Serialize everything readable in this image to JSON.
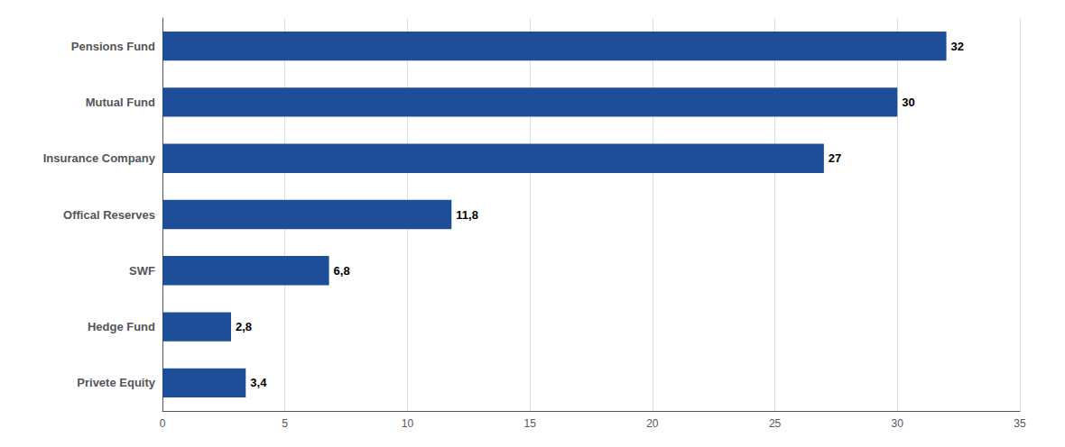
{
  "chart_data": {
    "type": "bar",
    "orientation": "horizontal",
    "categories": [
      "Pensions Fund",
      "Mutual Fund",
      "Insurance Company",
      "Offical Reserves",
      "SWF",
      "Hedge Fund",
      "Privete Equity"
    ],
    "values": [
      32,
      30,
      27,
      11.8,
      6.8,
      2.8,
      3.4
    ],
    "value_labels": [
      "32",
      "30",
      "27",
      "11,8",
      "6,8",
      "2,8",
      "3,4"
    ],
    "data_labels": true,
    "color": "#1F4E99",
    "xlim": [
      0,
      35
    ],
    "xticks": [
      0,
      5,
      10,
      15,
      20,
      25,
      30,
      35
    ],
    "grid": true
  }
}
